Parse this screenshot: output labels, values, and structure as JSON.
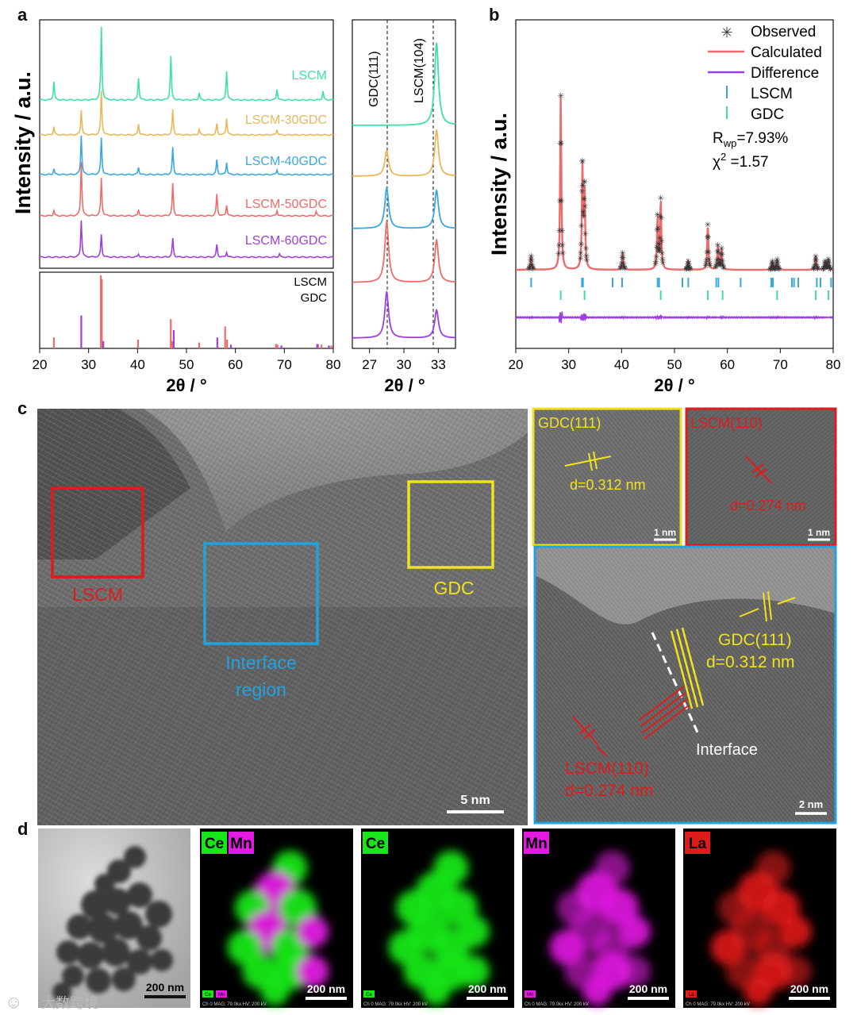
{
  "panels": {
    "a": "a",
    "b": "b",
    "c": "c",
    "d": "d"
  },
  "colors": {
    "lscm": "#3ee0a8",
    "lscm30": "#e8b85a",
    "lscm40": "#3aa8e0",
    "lscm50": "#ee6b6b",
    "lscm60": "#9b3fe0",
    "ref_lscm": "#ee6b6b",
    "ref_gdc": "#9b3fe0",
    "calc": "#ee6b6b",
    "diff": "#9b3fe0",
    "tick_lscm": "#3aa8e0",
    "tick_gdc": "#3ee0a8",
    "box_lscm": "#e01b1b",
    "box_gdc": "#f2e21c",
    "box_interface": "#1fa3e0",
    "ce": "#19e619",
    "mn": "#e21ae2",
    "la": "#e01b1b"
  },
  "chart_data": [
    {
      "id": "a-main",
      "type": "line",
      "ylabel": "Intensity / a.u.",
      "xlabel": "2θ / °",
      "xlim": [
        20,
        80
      ],
      "xticks": [
        "20",
        "30",
        "40",
        "50",
        "60",
        "70",
        "80"
      ],
      "series": [
        {
          "name": "LSCM",
          "color_key": "lscm",
          "peaks": [
            [
              22.9,
              0.25
            ],
            [
              32.6,
              1.0
            ],
            [
              40.2,
              0.3
            ],
            [
              46.8,
              0.6
            ],
            [
              52.6,
              0.1
            ],
            [
              58.2,
              0.4
            ],
            [
              68.5,
              0.15
            ],
            [
              77.9,
              0.12
            ]
          ]
        },
        {
          "name": "LSCM-30GDC",
          "color_key": "lscm30",
          "peaks": [
            [
              22.9,
              0.15
            ],
            [
              28.5,
              0.45
            ],
            [
              32.6,
              0.8
            ],
            [
              40.2,
              0.2
            ],
            [
              47.2,
              0.45
            ],
            [
              52.6,
              0.1
            ],
            [
              56.2,
              0.2
            ],
            [
              58.2,
              0.3
            ],
            [
              68.5,
              0.1
            ]
          ]
        },
        {
          "name": "LSCM-40GDC",
          "color_key": "lscm40",
          "peaks": [
            [
              22.9,
              0.12
            ],
            [
              28.5,
              0.8
            ],
            [
              32.6,
              0.75
            ],
            [
              40.2,
              0.15
            ],
            [
              47.2,
              0.55
            ],
            [
              56.2,
              0.3
            ],
            [
              58.2,
              0.25
            ],
            [
              68.5,
              0.1
            ]
          ]
        },
        {
          "name": "LSCM-50GDC",
          "color_key": "lscm50",
          "peaks": [
            [
              22.9,
              0.1
            ],
            [
              28.5,
              1.0
            ],
            [
              32.6,
              0.7
            ],
            [
              40.2,
              0.12
            ],
            [
              47.2,
              0.6
            ],
            [
              56.2,
              0.4
            ],
            [
              58.2,
              0.2
            ],
            [
              68.5,
              0.1
            ],
            [
              76.5,
              0.08
            ]
          ]
        },
        {
          "name": "LSCM-60GDC",
          "color_key": "lscm60",
          "peaks": [
            [
              28.5,
              0.9
            ],
            [
              32.6,
              0.55
            ],
            [
              40.2,
              0.08
            ],
            [
              47.2,
              0.45
            ],
            [
              56.2,
              0.3
            ],
            [
              58.2,
              0.12
            ],
            [
              69,
              0.08
            ]
          ]
        }
      ]
    },
    {
      "id": "a-ref",
      "type": "bar",
      "series": [
        {
          "name": "LSCM",
          "color_key": "ref_lscm",
          "x": [
            22.9,
            32.5,
            32.7,
            40.1,
            46.8,
            47.1,
            52.6,
            57.9,
            58.3,
            68.3,
            68.6,
            76.9,
            77.6,
            79.6
          ],
          "values": [
            0.15,
            1.0,
            0.95,
            0.12,
            0.4,
            0.1,
            0.08,
            0.3,
            0.12,
            0.06,
            0.05,
            0.06,
            0.05,
            0.04
          ]
        },
        {
          "name": "GDC",
          "color_key": "ref_gdc",
          "x": [
            28.5,
            33.0,
            47.4,
            56.3,
            59.1,
            69.4,
            76.7,
            79.1
          ],
          "values": [
            0.45,
            0.1,
            0.25,
            0.15,
            0.05,
            0.04,
            0.06,
            0.04
          ]
        }
      ]
    },
    {
      "id": "a-zoom",
      "type": "line",
      "xlabel": "2θ / °",
      "xlim": [
        25.5,
        34.5
      ],
      "xticks": [
        "27",
        "30",
        "33"
      ],
      "annotations": [
        "GDC(111)",
        "LSCM(104)"
      ]
    },
    {
      "id": "b",
      "type": "scatter",
      "ylabel": "Intensity / a.u.",
      "xlabel": "2θ / °",
      "xlim": [
        20,
        80
      ],
      "xticks": [
        "20",
        "30",
        "40",
        "50",
        "60",
        "70",
        "80"
      ],
      "legend": [
        "Observed",
        "Calculated",
        "Difference",
        "LSCM",
        "GDC"
      ],
      "rwp_label": "R",
      "rwp_sub": "wp",
      "rwp_value": "=7.93%",
      "chi_label": "χ",
      "chi_sup": "2",
      "chi_value": " =1.57",
      "peaks": [
        [
          22.9,
          0.08
        ],
        [
          28.5,
          1.0
        ],
        [
          32.6,
          0.58
        ],
        [
          33.0,
          0.45
        ],
        [
          40.2,
          0.1
        ],
        [
          46.8,
          0.3
        ],
        [
          47.4,
          0.4
        ],
        [
          52.6,
          0.05
        ],
        [
          56.3,
          0.26
        ],
        [
          58.2,
          0.14
        ],
        [
          58.9,
          0.12
        ],
        [
          68.5,
          0.05
        ],
        [
          69.4,
          0.06
        ],
        [
          76.7,
          0.08
        ],
        [
          78.5,
          0.05
        ],
        [
          79.1,
          0.06
        ]
      ],
      "lscm_ticks": [
        22.9,
        32.5,
        32.7,
        38.3,
        40.1,
        46.8,
        47.1,
        51.5,
        52.6,
        57.9,
        58.3,
        62.5,
        68.3,
        68.6,
        72.2,
        72.6,
        73.4,
        76.9,
        77.6,
        79.6
      ],
      "gdc_ticks": [
        28.5,
        33.0,
        47.4,
        56.3,
        59.1,
        69.4,
        76.7,
        79.1
      ]
    }
  ],
  "c": {
    "box_lscm": "LSCM",
    "box_interface_1": "Interface",
    "box_interface_2": "region",
    "box_gdc": "GDC",
    "scale_main": "5 nm",
    "inset_gdc_title": "GDC(111)",
    "inset_gdc_d": "d=0.312 nm",
    "inset_gdc_scale": "1 nm",
    "inset_lscm_title": "LSCM(110)",
    "inset_lscm_d": "d=0.274 nm",
    "inset_lscm_scale": "1 nm",
    "big_gdc_1": "GDC(111)",
    "big_gdc_2": "d=0.312 nm",
    "big_interface": "Interface",
    "big_lscm_1": "LSCM(110)",
    "big_lscm_2": "d=0.274 nm",
    "big_scale": "2 nm"
  },
  "d": {
    "tem_scale": "200 nm",
    "watermark": "大数跨境",
    "maps": [
      {
        "tags": [
          {
            "t": "Ce",
            "c": "ce"
          },
          {
            "t": "Mn",
            "c": "mn"
          }
        ],
        "scale": "200 nm",
        "foot": "Ch 0    MAG: 79.0kx    HV: 200 kV",
        "mini": [
          "Ce",
          "Mn"
        ]
      },
      {
        "tags": [
          {
            "t": "Ce",
            "c": "ce"
          }
        ],
        "scale": "200 nm",
        "foot": "Ch 0    MAG: 79.0kx    HV: 200 kV",
        "mini": [
          "Ce"
        ]
      },
      {
        "tags": [
          {
            "t": "Mn",
            "c": "mn"
          }
        ],
        "scale": "200 nm",
        "foot": "Ch 0    MAG: 79.0kx    HV: 200 kV",
        "mini": [
          "Mn"
        ]
      },
      {
        "tags": [
          {
            "t": "La",
            "c": "la"
          }
        ],
        "scale": "200 nm",
        "foot": "Ch 0    MAG: 79.0kx    HV: 200 kV",
        "mini": [
          "La"
        ]
      }
    ]
  }
}
